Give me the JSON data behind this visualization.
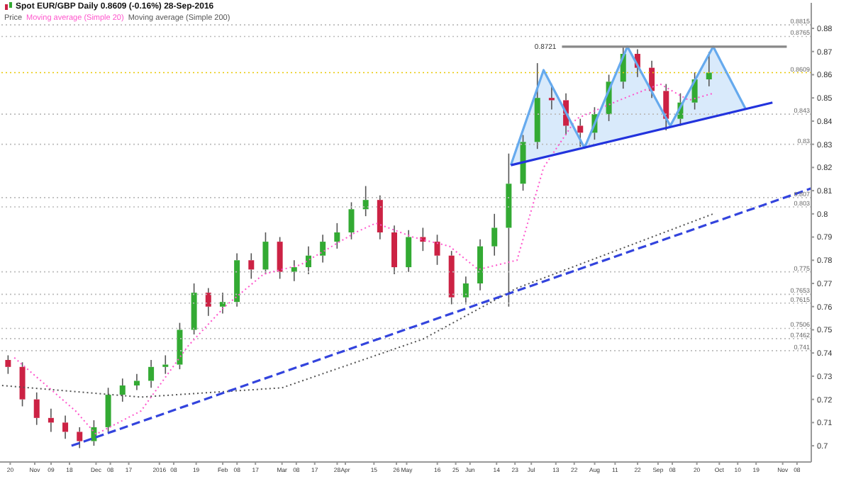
{
  "chart_data": {
    "type": "candlestick",
    "title": "Spot EUR/GBP  Daily  0.8609 (-0.16%)  28-Sep-2016",
    "xlim": [
      "2015-10-15",
      "2016-11-15"
    ],
    "xticks": [
      {
        "value": "2015-10-20",
        "label": "20"
      },
      {
        "value": "2015-11-01",
        "label": "Nov"
      },
      {
        "value": "2015-11-09",
        "label": "09"
      },
      {
        "value": "2015-11-18",
        "label": "18"
      },
      {
        "value": "2015-12-01",
        "label": "Dec"
      },
      {
        "value": "2015-12-08",
        "label": "08"
      },
      {
        "value": "2015-12-17",
        "label": "17"
      },
      {
        "value": "2016-01-01",
        "label": "2016"
      },
      {
        "value": "2016-01-08",
        "label": "08"
      },
      {
        "value": "2016-01-19",
        "label": "19"
      },
      {
        "value": "2016-02-01",
        "label": "Feb"
      },
      {
        "value": "2016-02-08",
        "label": "08"
      },
      {
        "value": "2016-02-17",
        "label": "17"
      },
      {
        "value": "2016-03-01",
        "label": "Mar"
      },
      {
        "value": "2016-03-08",
        "label": "08"
      },
      {
        "value": "2016-03-17",
        "label": "17"
      },
      {
        "value": "2016-03-28",
        "label": "28"
      },
      {
        "value": "2016-04-01",
        "label": "Apr"
      },
      {
        "value": "2016-04-15",
        "label": "15"
      },
      {
        "value": "2016-04-26",
        "label": "26"
      },
      {
        "value": "2016-05-01",
        "label": "May"
      },
      {
        "value": "2016-05-16",
        "label": "16"
      },
      {
        "value": "2016-05-25",
        "label": "25"
      },
      {
        "value": "2016-06-01",
        "label": "Jun"
      },
      {
        "value": "2016-06-14",
        "label": "14"
      },
      {
        "value": "2016-06-23",
        "label": "23"
      },
      {
        "value": "2016-07-01",
        "label": "Jul"
      },
      {
        "value": "2016-07-13",
        "label": "13"
      },
      {
        "value": "2016-07-22",
        "label": "22"
      },
      {
        "value": "2016-08-01",
        "label": "Aug"
      },
      {
        "value": "2016-08-11",
        "label": "11"
      },
      {
        "value": "2016-08-22",
        "label": "22"
      },
      {
        "value": "2016-09-01",
        "label": "Sep"
      },
      {
        "value": "2016-09-08",
        "label": "08"
      },
      {
        "value": "2016-09-20",
        "label": "20"
      },
      {
        "value": "2016-10-01",
        "label": "Oct"
      },
      {
        "value": "2016-10-10",
        "label": "10"
      },
      {
        "value": "2016-10-19",
        "label": "19"
      },
      {
        "value": "2016-11-01",
        "label": "Nov"
      },
      {
        "value": "2016-11-08",
        "label": "08"
      }
    ],
    "ylim": [
      0.693,
      0.891
    ],
    "yticks": [
      0.7,
      0.71,
      0.72,
      0.73,
      0.74,
      0.75,
      0.76,
      0.77,
      0.78,
      0.79,
      0.8,
      0.81,
      0.82,
      0.83,
      0.84,
      0.85,
      0.86,
      0.87,
      0.88
    ],
    "legend": "top left",
    "marker": "none",
    "series": [
      {
        "name": "Price",
        "type": "candlestick",
        "color": "#555555",
        "x": [
          "2015-10-19",
          "2015-10-26",
          "2015-11-02",
          "2015-11-09",
          "2015-11-16",
          "2015-11-23",
          "2015-11-30",
          "2015-12-07",
          "2015-12-14",
          "2015-12-21",
          "2015-12-28",
          "2016-01-04",
          "2016-01-11",
          "2016-01-18",
          "2016-01-25",
          "2016-02-01",
          "2016-02-08",
          "2016-02-15",
          "2016-02-22",
          "2016-02-29",
          "2016-03-07",
          "2016-03-14",
          "2016-03-21",
          "2016-03-28",
          "2016-04-04",
          "2016-04-11",
          "2016-04-18",
          "2016-04-25",
          "2016-05-02",
          "2016-05-09",
          "2016-05-16",
          "2016-05-23",
          "2016-05-30",
          "2016-06-06",
          "2016-06-13",
          "2016-06-20",
          "2016-06-27",
          "2016-07-04",
          "2016-07-11",
          "2016-07-18",
          "2016-07-25",
          "2016-08-01",
          "2016-08-08",
          "2016-08-15",
          "2016-08-22",
          "2016-08-29",
          "2016-09-05",
          "2016-09-12",
          "2016-09-19",
          "2016-09-26"
        ],
        "ohlc": [
          [
            0.737,
            0.739,
            0.731,
            0.734
          ],
          [
            0.734,
            0.736,
            0.717,
            0.72
          ],
          [
            0.72,
            0.723,
            0.709,
            0.712
          ],
          [
            0.712,
            0.716,
            0.706,
            0.71
          ],
          [
            0.71,
            0.713,
            0.703,
            0.706
          ],
          [
            0.706,
            0.708,
            0.699,
            0.702
          ],
          [
            0.702,
            0.711,
            0.7,
            0.708
          ],
          [
            0.708,
            0.725,
            0.706,
            0.722
          ],
          [
            0.722,
            0.729,
            0.719,
            0.726
          ],
          [
            0.726,
            0.731,
            0.724,
            0.728
          ],
          [
            0.728,
            0.737,
            0.725,
            0.734
          ],
          [
            0.734,
            0.739,
            0.731,
            0.735
          ],
          [
            0.735,
            0.753,
            0.733,
            0.75
          ],
          [
            0.75,
            0.77,
            0.748,
            0.766
          ],
          [
            0.766,
            0.768,
            0.756,
            0.76
          ],
          [
            0.76,
            0.766,
            0.757,
            0.762
          ],
          [
            0.762,
            0.783,
            0.76,
            0.78
          ],
          [
            0.78,
            0.783,
            0.772,
            0.776
          ],
          [
            0.776,
            0.792,
            0.774,
            0.788
          ],
          [
            0.788,
            0.79,
            0.772,
            0.775
          ],
          [
            0.775,
            0.78,
            0.771,
            0.777
          ],
          [
            0.777,
            0.786,
            0.774,
            0.782
          ],
          [
            0.782,
            0.791,
            0.779,
            0.788
          ],
          [
            0.788,
            0.796,
            0.785,
            0.792
          ],
          [
            0.792,
            0.805,
            0.789,
            0.802
          ],
          [
            0.802,
            0.812,
            0.799,
            0.806
          ],
          [
            0.806,
            0.808,
            0.789,
            0.792
          ],
          [
            0.792,
            0.795,
            0.774,
            0.777
          ],
          [
            0.777,
            0.793,
            0.775,
            0.79
          ],
          [
            0.79,
            0.794,
            0.784,
            0.788
          ],
          [
            0.788,
            0.791,
            0.778,
            0.782
          ],
          [
            0.782,
            0.784,
            0.761,
            0.764
          ],
          [
            0.764,
            0.773,
            0.761,
            0.77
          ],
          [
            0.77,
            0.789,
            0.767,
            0.786
          ],
          [
            0.786,
            0.8,
            0.782,
            0.794
          ],
          [
            0.794,
            0.826,
            0.76,
            0.813
          ],
          [
            0.813,
            0.834,
            0.81,
            0.831
          ],
          [
            0.831,
            0.865,
            0.828,
            0.85
          ],
          [
            0.85,
            0.856,
            0.845,
            0.849
          ],
          [
            0.849,
            0.852,
            0.834,
            0.838
          ],
          [
            0.838,
            0.841,
            0.829,
            0.835
          ],
          [
            0.835,
            0.846,
            0.832,
            0.843
          ],
          [
            0.843,
            0.86,
            0.84,
            0.857
          ],
          [
            0.857,
            0.8721,
            0.854,
            0.869
          ],
          [
            0.869,
            0.871,
            0.859,
            0.863
          ],
          [
            0.863,
            0.866,
            0.85,
            0.853
          ],
          [
            0.853,
            0.856,
            0.836,
            0.841
          ],
          [
            0.841,
            0.852,
            0.838,
            0.848
          ],
          [
            0.848,
            0.861,
            0.845,
            0.858
          ],
          [
            0.858,
            0.8698,
            0.855,
            0.8609
          ]
        ],
        "colors": [
          "#cc2244",
          "#cc2244",
          "#cc2244",
          "#cc2244",
          "#cc2244",
          "#cc2244",
          "#33aa33",
          "#33aa33",
          "#33aa33",
          "#33aa33",
          "#33aa33",
          "#33aa33",
          "#33aa33",
          "#33aa33",
          "#cc2244",
          "#33aa33",
          "#33aa33",
          "#cc2244",
          "#33aa33",
          "#cc2244",
          "#33aa33",
          "#33aa33",
          "#33aa33",
          "#33aa33",
          "#33aa33",
          "#33aa33",
          "#cc2244",
          "#cc2244",
          "#33aa33",
          "#cc2244",
          "#cc2244",
          "#cc2244",
          "#33aa33",
          "#33aa33",
          "#33aa33",
          "#33aa33",
          "#33aa33",
          "#33aa33",
          "#cc2244",
          "#cc2244",
          "#cc2244",
          "#33aa33",
          "#33aa33",
          "#33aa33",
          "#cc2244",
          "#cc2244",
          "#cc2244",
          "#33aa33",
          "#33aa33",
          "#33aa33"
        ]
      },
      {
        "name": "Moving average (Simple 20)",
        "type": "line",
        "color": "#ff55cc",
        "line_style": "dotted",
        "x": [
          "2015-10-22",
          "2015-11-21",
          "2015-12-01",
          "2015-12-23",
          "2016-01-15",
          "2016-02-02",
          "2016-02-21",
          "2016-03-10",
          "2016-04-06",
          "2016-04-16",
          "2016-05-04",
          "2016-05-22",
          "2016-06-05",
          "2016-06-24",
          "2016-07-07",
          "2016-07-23",
          "2016-08-13",
          "2016-09-02",
          "2016-09-16",
          "2016-09-28"
        ],
        "values": [
          0.738,
          0.715,
          0.705,
          0.715,
          0.743,
          0.76,
          0.774,
          0.778,
          0.792,
          0.796,
          0.79,
          0.786,
          0.776,
          0.78,
          0.82,
          0.841,
          0.849,
          0.856,
          0.849,
          0.852
        ]
      },
      {
        "name": "Moving average (Simple 200)",
        "type": "line",
        "color": "#555555",
        "line_style": "dotted",
        "x": [
          "2015-10-16",
          "2015-12-23",
          "2016-03-01",
          "2016-05-09",
          "2016-06-24",
          "2016-09-28"
        ],
        "values": [
          0.726,
          0.721,
          0.725,
          0.746,
          0.768,
          0.8
        ]
      },
      {
        "type": "line",
        "color": "#3344dd",
        "line_style": "dashed",
        "x": [
          "2015-11-19",
          "2016-11-15"
        ],
        "values": [
          0.7,
          0.811
        ]
      },
      {
        "type": "line",
        "color": "#66aaee",
        "line_style": "solid",
        "x": [
          "2016-06-21",
          "2016-07-07",
          "2016-07-27",
          "2016-08-17",
          "2016-09-07",
          "2016-09-28",
          "2016-10-14"
        ],
        "values": [
          0.821,
          0.862,
          0.8285,
          0.8721,
          0.838,
          0.8721,
          0.845
        ],
        "lower": [
          0.821,
          0.824,
          0.828,
          0.833,
          0.837,
          0.842,
          0.845
        ],
        "upper": [
          0.821,
          0.862,
          0.8285,
          0.8721,
          0.838,
          0.8721,
          0.845
        ]
      },
      {
        "type": "line",
        "color": "#2233dd",
        "line_style": "solid",
        "x": [
          "2016-06-21",
          "2016-10-27"
        ],
        "values": [
          0.821,
          0.848
        ]
      },
      {
        "type": "line",
        "color": "#888888",
        "line_style": "solid",
        "x": [
          "2016-07-16",
          "2016-11-03"
        ],
        "values": [
          0.8721,
          0.8721
        ],
        "value_labels": [
          "0.8721",
          null
        ]
      }
    ],
    "ref_lines": [
      {
        "axis": "y",
        "value": 0.8815,
        "label": "0.8815",
        "color": "#bbbbbb",
        "line_style": "dotted"
      },
      {
        "axis": "y",
        "value": 0.8765,
        "label": "0.8765",
        "color": "#bbbbbb",
        "line_style": "dotted"
      },
      {
        "axis": "y",
        "value": 0.8609,
        "label": "0.8609",
        "color": "#e8c800",
        "line_style": "dotted"
      },
      {
        "axis": "y",
        "value": 0.843,
        "label": "0.843",
        "color": "#bbbbbb",
        "line_style": "dotted"
      },
      {
        "axis": "y",
        "value": 0.83,
        "label": "0.83",
        "color": "#bbbbbb",
        "line_style": "dotted"
      },
      {
        "axis": "y",
        "value": 0.807,
        "label": "0.807",
        "color": "#bbbbbb",
        "line_style": "dotted"
      },
      {
        "axis": "y",
        "value": 0.803,
        "label": "0.803",
        "color": "#bbbbbb",
        "line_style": "dotted"
      },
      {
        "axis": "y",
        "value": 0.775,
        "label": "0.775",
        "color": "#bbbbbb",
        "line_style": "dotted"
      },
      {
        "axis": "y",
        "value": 0.7653,
        "label": "0.7653",
        "color": "#bbbbbb",
        "line_style": "dotted"
      },
      {
        "axis": "y",
        "value": 0.7615,
        "label": "0.7615",
        "color": "#bbbbbb",
        "line_style": "dotted"
      },
      {
        "axis": "y",
        "value": 0.7506,
        "label": "0.7506",
        "color": "#bbbbbb",
        "line_style": "dotted"
      },
      {
        "axis": "y",
        "value": 0.7462,
        "label": "0.7462",
        "color": "#bbbbbb",
        "line_style": "dotted"
      },
      {
        "axis": "y",
        "value": 0.741,
        "label": "0.741",
        "color": "#bbbbbb",
        "line_style": "dotted"
      }
    ]
  }
}
